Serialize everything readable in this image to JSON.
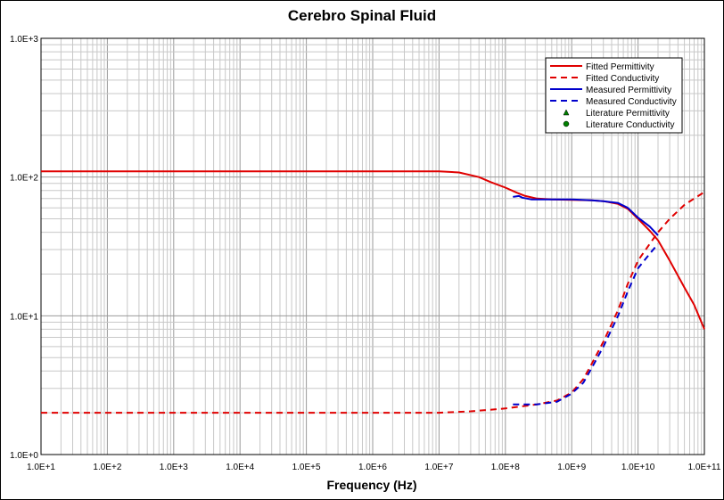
{
  "chart_data": {
    "type": "line",
    "title": "Cerebro Spinal Fluid",
    "xlabel": "Frequency (Hz)",
    "ylabel": "",
    "x_scale": "log",
    "y_scale": "log",
    "xlim": [
      10,
      100000000000
    ],
    "ylim": [
      1,
      1000
    ],
    "grid": true,
    "legend_position": "top-right",
    "x_tick_labels": [
      "1.0E+1",
      "1.0E+2",
      "1.0E+3",
      "1.0E+4",
      "1.0E+5",
      "1.0E+6",
      "1.0E+7",
      "1.0E+8",
      "1.0E+9",
      "1.0E+10",
      "1.0E+11"
    ],
    "y_tick_labels": [
      "1.0E+0",
      "1.0E+1",
      "1.0E+2",
      "1.0E+3"
    ],
    "series": [
      {
        "name": "Fitted Permittivity",
        "color": "#e00000",
        "dash": "solid",
        "points": [
          [
            10,
            110
          ],
          [
            1000000,
            110
          ],
          [
            10000000,
            110
          ],
          [
            20000000,
            108
          ],
          [
            40000000,
            100
          ],
          [
            60000000,
            92
          ],
          [
            100000000,
            84
          ],
          [
            150000000,
            77
          ],
          [
            200000000,
            73
          ],
          [
            300000000,
            70
          ],
          [
            500000000,
            69
          ],
          [
            1000000000,
            68.5
          ],
          [
            2000000000,
            68
          ],
          [
            3000000000,
            67
          ],
          [
            5000000000,
            64
          ],
          [
            7000000000,
            59
          ],
          [
            10000000000,
            50
          ],
          [
            15000000000,
            41
          ],
          [
            20000000000,
            35
          ],
          [
            30000000000,
            25
          ],
          [
            50000000000,
            16
          ],
          [
            70000000000,
            12
          ],
          [
            100000000000,
            8
          ]
        ]
      },
      {
        "name": "Fitted Conductivity",
        "color": "#e00000",
        "dash": "dashed",
        "points": [
          [
            10,
            2.0
          ],
          [
            10000000,
            2.0
          ],
          [
            30000000,
            2.05
          ],
          [
            100000000,
            2.15
          ],
          [
            300000000,
            2.3
          ],
          [
            600000000,
            2.45
          ],
          [
            1000000000,
            2.8
          ],
          [
            1500000000,
            3.5
          ],
          [
            2000000000,
            4.5
          ],
          [
            3000000000,
            6.5
          ],
          [
            5000000000,
            11
          ],
          [
            7000000000,
            17
          ],
          [
            10000000000,
            25
          ],
          [
            15000000000,
            33
          ],
          [
            20000000000,
            40
          ],
          [
            30000000000,
            50
          ],
          [
            50000000000,
            63
          ],
          [
            70000000000,
            70
          ],
          [
            100000000000,
            78
          ]
        ]
      },
      {
        "name": "Measured Permittivity",
        "color": "#0000cc",
        "dash": "solid",
        "points": [
          [
            130000000,
            72
          ],
          [
            160000000,
            73
          ],
          [
            180000000,
            71
          ],
          [
            250000000,
            69
          ],
          [
            500000000,
            69
          ],
          [
            1000000000,
            69
          ],
          [
            2000000000,
            68
          ],
          [
            3000000000,
            67
          ],
          [
            5000000000,
            65
          ],
          [
            7000000000,
            60
          ],
          [
            10000000000,
            51
          ],
          [
            15000000000,
            44
          ],
          [
            20000000000,
            38
          ]
        ]
      },
      {
        "name": "Measured Conductivity",
        "color": "#0000cc",
        "dash": "dashed",
        "points": [
          [
            130000000,
            2.3
          ],
          [
            300000000,
            2.3
          ],
          [
            600000000,
            2.4
          ],
          [
            1000000000,
            2.75
          ],
          [
            1500000000,
            3.3
          ],
          [
            2000000000,
            4.2
          ],
          [
            3000000000,
            6
          ],
          [
            5000000000,
            10
          ],
          [
            7000000000,
            15
          ],
          [
            10000000000,
            22
          ],
          [
            15000000000,
            28
          ],
          [
            20000000000,
            33
          ]
        ]
      }
    ],
    "literature_series": [
      {
        "name": "Literature Permittivity",
        "marker": "triangle",
        "color": "#008000",
        "points": []
      },
      {
        "name": "Literature Conductivity",
        "marker": "circle",
        "color": "#008000",
        "points": []
      }
    ]
  }
}
